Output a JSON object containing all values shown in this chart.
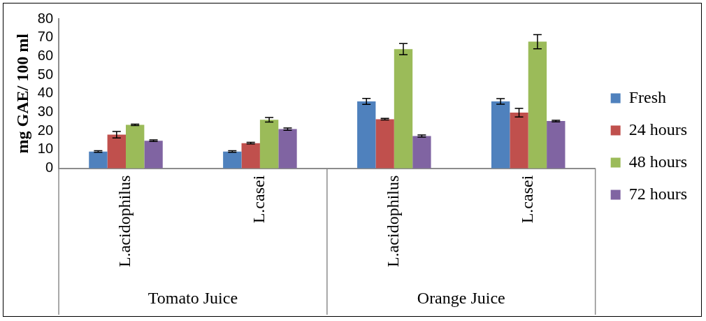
{
  "chart_data": {
    "type": "bar",
    "ylabel": "mg GAE/ 100 ml",
    "categories": [
      "L.acidophilus",
      "L.casei",
      "L.acidophilus",
      "L.casei"
    ],
    "series": [
      {
        "name": "Fresh",
        "color": "#4f81bd",
        "values": [
          9,
          9,
          35.8,
          35.8
        ],
        "errors": [
          0.4,
          0.4,
          1.6,
          1.5
        ]
      },
      {
        "name": "24 hours",
        "color": "#c0504d",
        "values": [
          18,
          13.5,
          26.3,
          29.8
        ],
        "errors": [
          1.7,
          0.4,
          0.4,
          2.3
        ]
      },
      {
        "name": "48 hours",
        "color": "#9bbb59",
        "values": [
          23.3,
          26,
          63.8,
          67.8
        ],
        "errors": [
          0.4,
          1.2,
          3,
          3.8
        ]
      },
      {
        "name": "72 hours",
        "color": "#8064a2",
        "values": [
          14.8,
          21,
          17.3,
          25.3
        ],
        "errors": [
          0.4,
          0.6,
          0.6,
          0.4
        ]
      }
    ],
    "ylim": [
      0,
      80
    ],
    "yticks": [
      0,
      10,
      20,
      30,
      40,
      50,
      60,
      70,
      80
    ],
    "grid": false,
    "legend": "right",
    "annotations": [
      "Tomato Juice",
      "Orange Juice"
    ]
  }
}
